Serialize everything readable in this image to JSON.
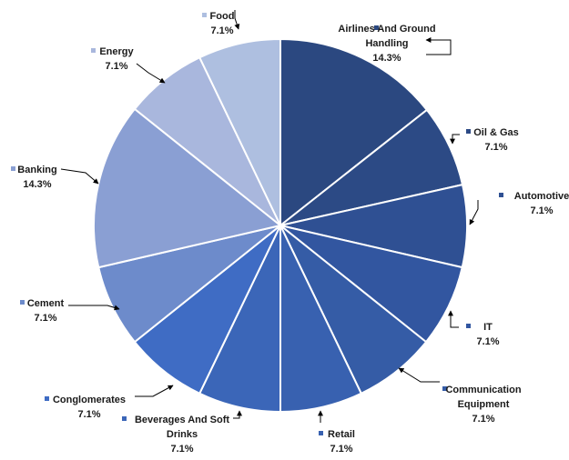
{
  "chart_data": {
    "type": "pie",
    "title": "",
    "slices": [
      {
        "label": "Airlines And Ground Handling",
        "label_lines": [
          "Airlines And Ground",
          "Handling"
        ],
        "pct_text": "14.3%",
        "value": 14.3,
        "color": "#2b4880"
      },
      {
        "label": "Oil & Gas",
        "label_lines": [
          "Oil & Gas"
        ],
        "pct_text": "7.1%",
        "value": 7.1,
        "color": "#2c4a85"
      },
      {
        "label": "Automotive",
        "label_lines": [
          "Automotive"
        ],
        "pct_text": "7.1%",
        "value": 7.1,
        "color": "#2f5093"
      },
      {
        "label": "IT",
        "label_lines": [
          "IT"
        ],
        "pct_text": "7.1%",
        "value": 7.1,
        "color": "#3256a0"
      },
      {
        "label": "Communication Equipment",
        "label_lines": [
          "Communication",
          "Equipment"
        ],
        "pct_text": "7.1%",
        "value": 7.1,
        "color": "#355ca6"
      },
      {
        "label": "Retail",
        "label_lines": [
          "Retail"
        ],
        "pct_text": "7.1%",
        "value": 7.1,
        "color": "#3861b0"
      },
      {
        "label": "Beverages And Soft Drinks",
        "label_lines": [
          "Beverages And Soft",
          "Drinks"
        ],
        "pct_text": "7.1%",
        "value": 7.1,
        "color": "#3b66b8"
      },
      {
        "label": "Conglomerates",
        "label_lines": [
          "Conglomerates"
        ],
        "pct_text": "7.1%",
        "value": 7.1,
        "color": "#3f6cc4"
      },
      {
        "label": "Cement",
        "label_lines": [
          "Cement"
        ],
        "pct_text": "7.1%",
        "value": 7.1,
        "color": "#6d8bcb"
      },
      {
        "label": "Banking",
        "label_lines": [
          "Banking"
        ],
        "pct_text": "14.3%",
        "value": 14.3,
        "color": "#8a9fd3"
      },
      {
        "label": "Energy",
        "label_lines": [
          "Energy"
        ],
        "pct_text": "7.1%",
        "value": 7.1,
        "color": "#a9b7dd"
      },
      {
        "label": "Food",
        "label_lines": [
          "Food"
        ],
        "pct_text": "7.1%",
        "value": 7.1,
        "color": "#aebfe0"
      }
    ],
    "legend": "none",
    "slice_border_color": "#ffffff",
    "leader_line_color": "#000000"
  }
}
